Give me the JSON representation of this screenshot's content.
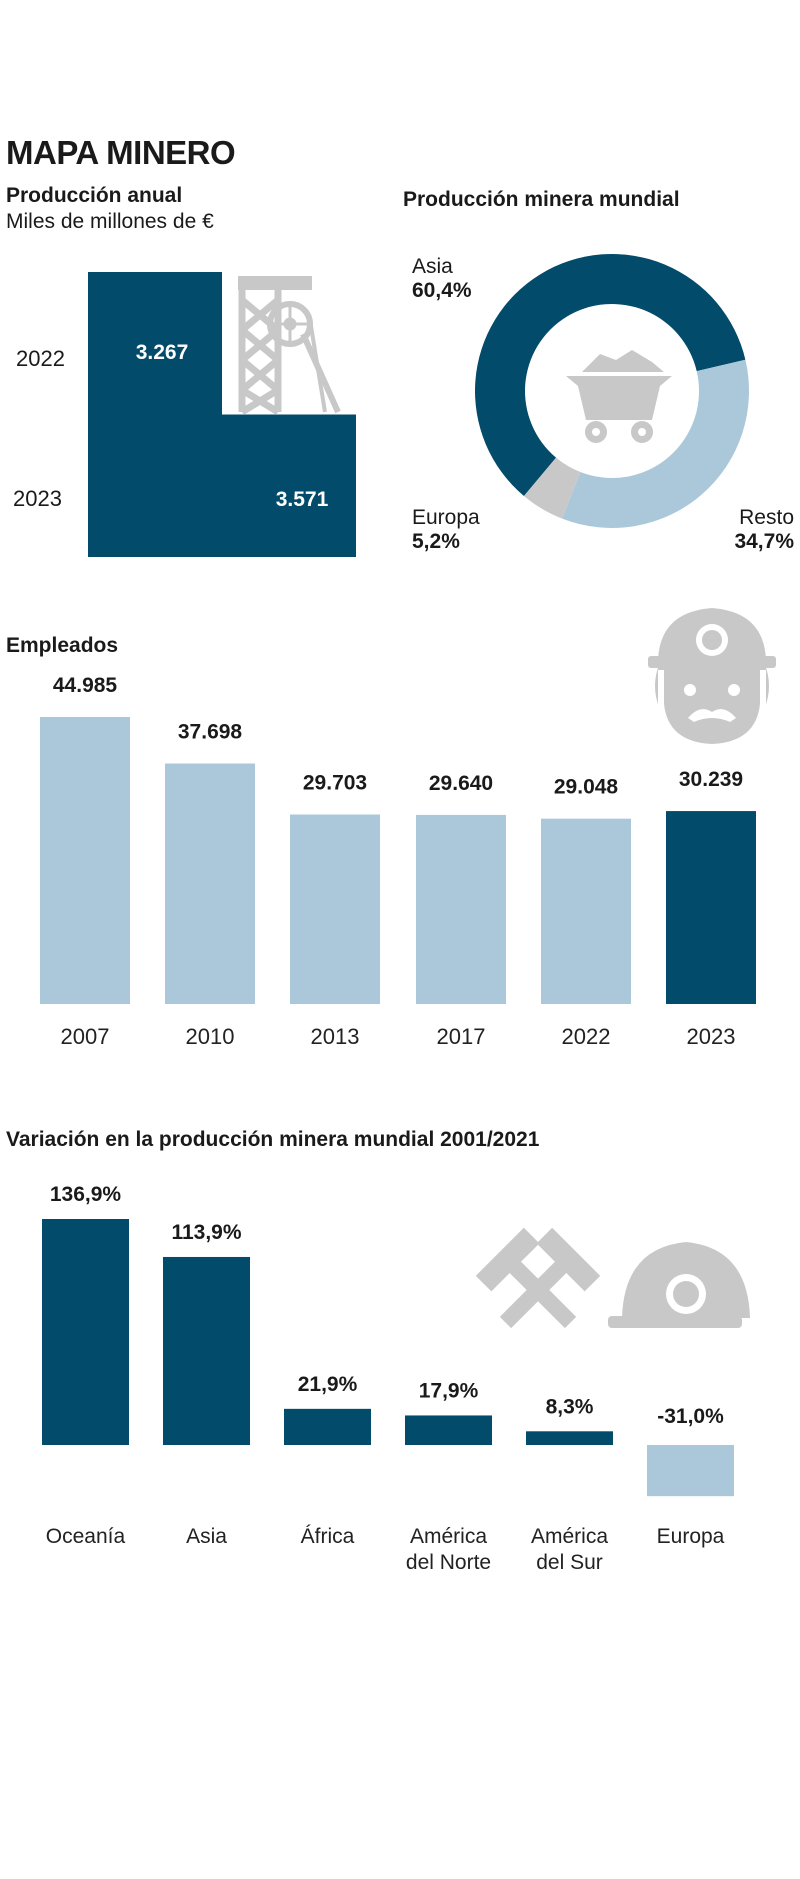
{
  "title": "MAPA MINERO",
  "colors": {
    "dark": "#034b6b",
    "light": "#abc8da",
    "gray": "#c8c8c8",
    "text": "#1a1a1a"
  },
  "icons": [
    "mine-headframe-icon",
    "mine-cart-icon",
    "miner-face-icon",
    "crossed-hammers-icon",
    "hard-hat-icon"
  ],
  "produccion": {
    "title": "Producción anual",
    "subtitle": "Miles de millones de €",
    "years": [
      "2022",
      "2023"
    ],
    "values": [
      "3.267",
      "3.571"
    ]
  },
  "mundial": {
    "title": "Producción minera mundial",
    "labels": {
      "asia_name": "Asia",
      "asia_value": "60,4%",
      "europa_name": "Europa",
      "europa_value": "5,2%",
      "resto_name": "Resto",
      "resto_value": "34,7%"
    }
  },
  "empleados_title": "Empleados",
  "variacion_title": "Variación en la producción minera mundial 2001/2021",
  "chart_data": [
    {
      "type": "bar",
      "title": "Producción anual",
      "subtitle": "Miles de millones de €",
      "categories": [
        "2022",
        "2023"
      ],
      "values": [
        3267,
        3571
      ],
      "value_labels": [
        "3.267",
        "3.571"
      ]
    },
    {
      "type": "pie",
      "title": "Producción minera mundial",
      "categories": [
        "Asia",
        "Resto",
        "Europa"
      ],
      "values": [
        60.4,
        34.7,
        5.2
      ],
      "value_labels": [
        "60,4%",
        "34,7%",
        "5,2%"
      ],
      "colors": [
        "#034b6b",
        "#abc8da",
        "#c8c8c8"
      ]
    },
    {
      "type": "bar",
      "title": "Empleados",
      "categories": [
        "2007",
        "2010",
        "2013",
        "2017",
        "2022",
        "2023"
      ],
      "values": [
        44985,
        37698,
        29703,
        29640,
        29048,
        30239
      ],
      "value_labels": [
        "44.985",
        "37.698",
        "29.703",
        "29.640",
        "29.048",
        "30.239"
      ],
      "highlight": "2023"
    },
    {
      "type": "bar",
      "title": "Variación en la producción minera mundial 2001/2021",
      "categories": [
        "Oceanía",
        "Asia",
        "África",
        "América del Norte",
        "América del Sur",
        "Europa"
      ],
      "values": [
        136.9,
        113.9,
        21.9,
        17.9,
        8.3,
        -31.0
      ],
      "value_labels": [
        "136,9%",
        "113,9%",
        "21,9%",
        "17,9%",
        "8,3%",
        "-31,0%"
      ]
    }
  ]
}
